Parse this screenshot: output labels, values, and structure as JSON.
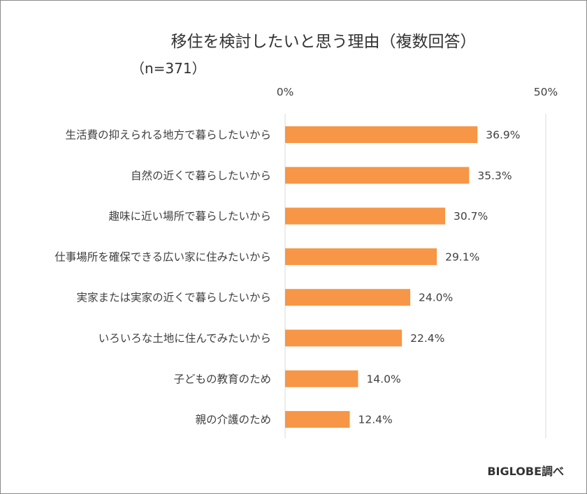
{
  "chart_data": {
    "type": "bar",
    "orientation": "horizontal",
    "title": "移住を検討したいと思う理由（複数回答）",
    "subtitle": "（n=371）",
    "categories": [
      "生活費の抑えられる地方で暮らしたいから",
      "自然の近くで暮らしたいから",
      "趣味に近い場所で暮らしたいから",
      "仕事場所を確保できる広い家に住みたいから",
      "実家または実家の近くで暮らしたいから",
      "いろいろな土地に住んでみたいから",
      "子どもの教育のため",
      "親の介護のため"
    ],
    "values": [
      36.9,
      35.3,
      30.7,
      29.1,
      24.0,
      22.4,
      14.0,
      12.4
    ],
    "value_labels": [
      "36.9%",
      "35.3%",
      "30.7%",
      "29.1%",
      "24.0%",
      "22.4%",
      "14.0%",
      "12.4%"
    ],
    "xlim": [
      0,
      50
    ],
    "ticks": [
      {
        "value": 0,
        "label": "0%"
      },
      {
        "value": 50,
        "label": "50%"
      }
    ],
    "bar_color": "#f79646",
    "gridline_color": "#d9d9d9",
    "legend": "none",
    "source": "BIGLOBE調べ"
  }
}
